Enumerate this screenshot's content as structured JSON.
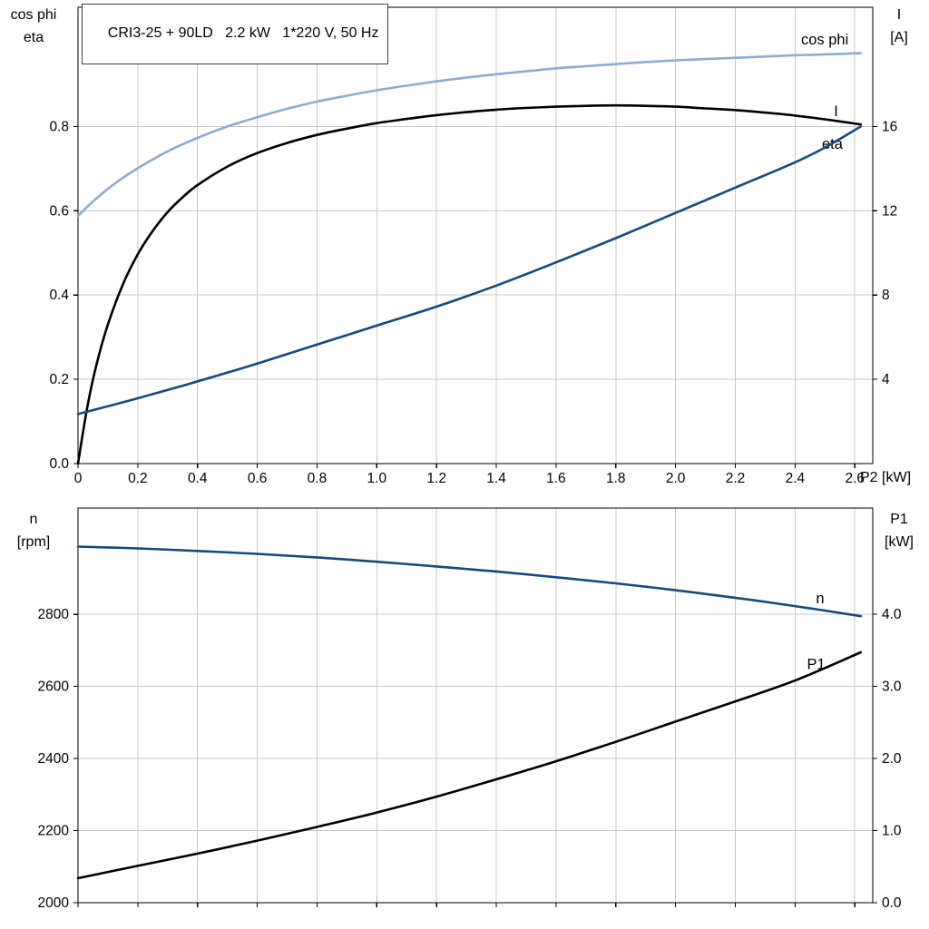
{
  "colors": {
    "light_blue": "#8fabcf",
    "dark_blue": "#17497a",
    "black": "#000000",
    "grid": "#c8c8c8",
    "frame": "#000000"
  },
  "chart_data": [
    {
      "type": "line",
      "title": "CRI3-25 + 90LD   2.2 kW   1*220 V, 50 Hz",
      "xlabel": "P2 [kW]",
      "ylabel_left": [
        "cos phi",
        "eta"
      ],
      "ylabel_right": [
        "I",
        "[A]"
      ],
      "xlim": [
        0,
        2.66
      ],
      "xticks": [
        0,
        0.2,
        0.4,
        0.6,
        0.8,
        1.0,
        1.2,
        1.4,
        1.6,
        1.8,
        2.0,
        2.2,
        2.4,
        2.6
      ],
      "xtick_labels": [
        "0",
        "0.2",
        "0.4",
        "0.6",
        "0.8",
        "1.0",
        "1.2",
        "1.4",
        "1.6",
        "1.8",
        "2.0",
        "2.2",
        "2.4",
        "2.6"
      ],
      "ylim_left": [
        0,
        1.083
      ],
      "yticks_left": [
        0,
        0.2,
        0.4,
        0.6,
        0.8
      ],
      "ytick_left_labels": [
        "0.0",
        "0.2",
        "0.4",
        "0.6",
        "0.8"
      ],
      "ylim_right": [
        0,
        21.66
      ],
      "yticks_right": [
        4,
        8,
        12,
        16
      ],
      "ytick_right_labels": [
        "4",
        "8",
        "12",
        "16"
      ],
      "grid": true,
      "legend_position": "inline-labels",
      "series": [
        {
          "name": "cos phi",
          "axis": "left",
          "color": "light_blue",
          "label_at": [
            2.42,
            1.005
          ],
          "points": [
            [
              0,
              0.588
            ],
            [
              0.05,
              0.622
            ],
            [
              0.1,
              0.652
            ],
            [
              0.15,
              0.678
            ],
            [
              0.2,
              0.701
            ],
            [
              0.3,
              0.741
            ],
            [
              0.4,
              0.773
            ],
            [
              0.5,
              0.8
            ],
            [
              0.6,
              0.822
            ],
            [
              0.7,
              0.842
            ],
            [
              0.8,
              0.859
            ],
            [
              0.9,
              0.873
            ],
            [
              1.0,
              0.886
            ],
            [
              1.1,
              0.897
            ],
            [
              1.2,
              0.907
            ],
            [
              1.3,
              0.916
            ],
            [
              1.4,
              0.924
            ],
            [
              1.5,
              0.931
            ],
            [
              1.6,
              0.938
            ],
            [
              1.7,
              0.943
            ],
            [
              1.8,
              0.948
            ],
            [
              1.9,
              0.953
            ],
            [
              2.0,
              0.957
            ],
            [
              2.1,
              0.96
            ],
            [
              2.2,
              0.963
            ],
            [
              2.3,
              0.966
            ],
            [
              2.4,
              0.969
            ],
            [
              2.5,
              0.971
            ],
            [
              2.62,
              0.974
            ]
          ]
        },
        {
          "name": "eta",
          "axis": "left",
          "color": "black",
          "label_at": [
            2.49,
            0.758
          ],
          "points": [
            [
              0,
              0
            ],
            [
              0.03,
              0.13
            ],
            [
              0.06,
              0.23
            ],
            [
              0.1,
              0.33
            ],
            [
              0.15,
              0.425
            ],
            [
              0.2,
              0.497
            ],
            [
              0.25,
              0.552
            ],
            [
              0.3,
              0.597
            ],
            [
              0.35,
              0.632
            ],
            [
              0.4,
              0.661
            ],
            [
              0.5,
              0.705
            ],
            [
              0.6,
              0.737
            ],
            [
              0.7,
              0.761
            ],
            [
              0.8,
              0.78
            ],
            [
              0.9,
              0.795
            ],
            [
              1.0,
              0.808
            ],
            [
              1.1,
              0.818
            ],
            [
              1.2,
              0.827
            ],
            [
              1.3,
              0.834
            ],
            [
              1.4,
              0.84
            ],
            [
              1.5,
              0.844
            ],
            [
              1.6,
              0.847
            ],
            [
              1.7,
              0.849
            ],
            [
              1.8,
              0.85
            ],
            [
              1.9,
              0.849
            ],
            [
              2.0,
              0.847
            ],
            [
              2.1,
              0.843
            ],
            [
              2.2,
              0.839
            ],
            [
              2.3,
              0.833
            ],
            [
              2.4,
              0.826
            ],
            [
              2.5,
              0.817
            ],
            [
              2.62,
              0.805
            ]
          ]
        },
        {
          "name": "I",
          "axis": "right",
          "color": "dark_blue",
          "label_at": [
            2.53,
            16.7
          ],
          "points": [
            [
              0,
              2.35
            ],
            [
              0.2,
              3.1
            ],
            [
              0.4,
              3.9
            ],
            [
              0.6,
              4.75
            ],
            [
              0.8,
              5.65
            ],
            [
              1.0,
              6.55
            ],
            [
              1.2,
              7.45
            ],
            [
              1.4,
              8.45
            ],
            [
              1.6,
              9.55
            ],
            [
              1.8,
              10.7
            ],
            [
              2.0,
              11.9
            ],
            [
              2.2,
              13.1
            ],
            [
              2.4,
              14.3
            ],
            [
              2.5,
              15.0
            ],
            [
              2.62,
              16.0
            ]
          ]
        }
      ]
    },
    {
      "type": "line",
      "xlabel": "",
      "ylabel_left": [
        "n",
        "[rpm]"
      ],
      "ylabel_right": [
        "P1",
        "[kW]"
      ],
      "xlim": [
        0,
        2.66
      ],
      "xticks": [
        0,
        0.2,
        0.4,
        0.6,
        0.8,
        1.0,
        1.2,
        1.4,
        1.6,
        1.8,
        2.0,
        2.2,
        2.4,
        2.6
      ],
      "ylim_left": [
        2000,
        3095
      ],
      "yticks_left": [
        2000,
        2200,
        2400,
        2600,
        2800
      ],
      "ytick_left_labels": [
        "2000",
        "2200",
        "2400",
        "2600",
        "2800"
      ],
      "ylim_right": [
        0,
        5.47
      ],
      "yticks_right": [
        0,
        1,
        2,
        3,
        4
      ],
      "ytick_right_labels": [
        "0.0",
        "1.0",
        "2.0",
        "3.0",
        "4.0"
      ],
      "grid": true,
      "legend_position": "inline-labels",
      "series": [
        {
          "name": "n",
          "axis": "left",
          "color": "dark_blue",
          "label_at": [
            2.47,
            2843
          ],
          "points": [
            [
              0,
              2988
            ],
            [
              0.2,
              2983
            ],
            [
              0.4,
              2976
            ],
            [
              0.6,
              2968
            ],
            [
              0.8,
              2958
            ],
            [
              1.0,
              2946
            ],
            [
              1.2,
              2933
            ],
            [
              1.4,
              2919
            ],
            [
              1.6,
              2903
            ],
            [
              1.8,
              2886
            ],
            [
              2.0,
              2867
            ],
            [
              2.2,
              2846
            ],
            [
              2.4,
              2823
            ],
            [
              2.62,
              2795
            ]
          ]
        },
        {
          "name": "P1",
          "axis": "right",
          "color": "black",
          "label_at": [
            2.44,
            3.3
          ],
          "points": [
            [
              0,
              0.34
            ],
            [
              0.2,
              0.51
            ],
            [
              0.4,
              0.68
            ],
            [
              0.6,
              0.86
            ],
            [
              0.8,
              1.05
            ],
            [
              1.0,
              1.25
            ],
            [
              1.2,
              1.47
            ],
            [
              1.4,
              1.71
            ],
            [
              1.6,
              1.96
            ],
            [
              1.8,
              2.23
            ],
            [
              2.0,
              2.51
            ],
            [
              2.2,
              2.79
            ],
            [
              2.4,
              3.08
            ],
            [
              2.62,
              3.47
            ]
          ]
        }
      ]
    }
  ]
}
